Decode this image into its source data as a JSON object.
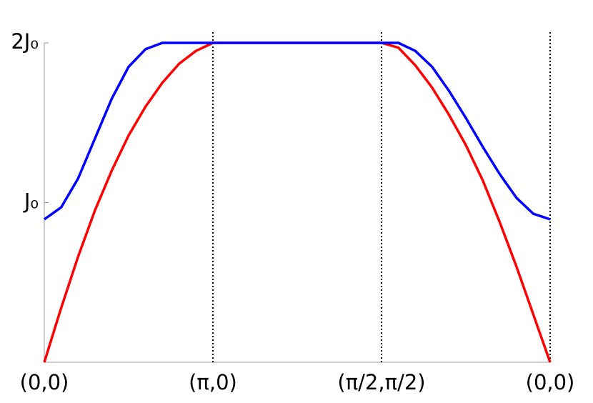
{
  "chart_data": {
    "type": "line",
    "x": [
      0,
      0.1,
      0.2,
      0.3,
      0.4,
      0.5,
      0.6,
      0.7,
      0.8,
      0.9,
      1.0,
      1.1,
      1.2,
      1.3,
      1.4,
      1.5,
      1.6,
      1.7,
      1.8,
      1.9,
      2.0,
      2.1,
      2.2,
      2.3,
      2.4,
      2.5,
      2.6,
      2.7,
      2.8,
      2.9,
      3.0
    ],
    "series": [
      {
        "color": "#ff0000",
        "values": [
          0,
          0.34,
          0.66,
          0.95,
          1.2,
          1.42,
          1.6,
          1.75,
          1.87,
          1.95,
          2,
          2,
          2,
          2,
          2,
          2,
          2,
          2,
          2,
          2,
          2,
          1.97,
          1.86,
          1.72,
          1.55,
          1.36,
          1.14,
          0.88,
          0.6,
          0.3,
          0
        ]
      },
      {
        "color": "#0000ff",
        "values": [
          0.895,
          0.97,
          1.15,
          1.4,
          1.65,
          1.85,
          1.96,
          2,
          2,
          2,
          2,
          2,
          2,
          2,
          2,
          2,
          2,
          2,
          2,
          2,
          2,
          2,
          1.95,
          1.85,
          1.7,
          1.53,
          1.35,
          1.18,
          1.03,
          0.93,
          0.895
        ]
      }
    ],
    "xlim": [
      0,
      3
    ],
    "xticks": [
      {
        "value": 0,
        "label": "(0,0)"
      },
      {
        "value": 1,
        "label": "(π,0)"
      },
      {
        "value": 2,
        "label": "(π/2,π/2)"
      },
      {
        "value": 3,
        "label": "(0,0)"
      }
    ],
    "ylim": [
      0,
      2
    ],
    "yticks": [
      {
        "value": 1,
        "label": "J₀"
      },
      {
        "value": 2,
        "label": "2J₀"
      }
    ],
    "grid": true
  }
}
